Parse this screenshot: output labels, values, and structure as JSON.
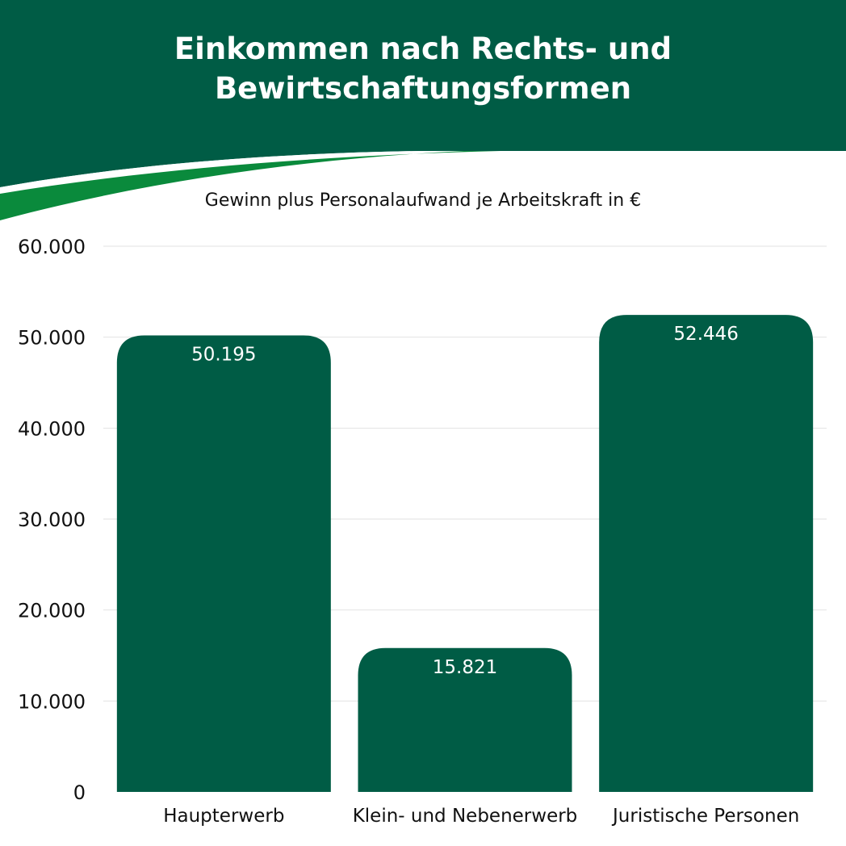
{
  "title_line1": "Einkommen nach Rechts- und",
  "title_line2": "Bewirtschaftungsformen",
  "subtitle": "Gewinn plus Personalaufwand je Arbeitskraft in €",
  "colors": {
    "header": "#005c45",
    "accent_stripe": "#0a8a3c",
    "bar": "#005c45",
    "grid": "#e2e2e2",
    "bar_label": "#ffffff",
    "axis_text": "#111111"
  },
  "chart_data": {
    "type": "bar",
    "title": "Einkommen nach Rechts- und Bewirtschaftungsformen",
    "subtitle": "Gewinn plus Personalaufwand je Arbeitskraft in €",
    "categories": [
      "Haupterwerb",
      "Klein- und Nebenerwerb",
      "Juristische Personen"
    ],
    "values": [
      50195,
      15821,
      52446
    ],
    "value_labels": [
      "50.195",
      "15.821",
      "52.446"
    ],
    "ylim": [
      0,
      60000
    ],
    "yticks": [
      0,
      10000,
      20000,
      30000,
      40000,
      50000,
      60000
    ],
    "ytick_labels": [
      "0",
      "10.000",
      "20.000",
      "30.000",
      "40.000",
      "50.000",
      "60.000"
    ],
    "grid": true,
    "legend": "none"
  }
}
